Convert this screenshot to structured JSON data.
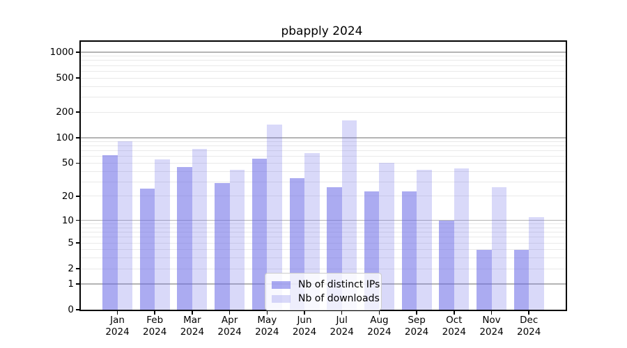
{
  "chart_data": {
    "type": "bar",
    "title": "pbapply 2024",
    "categories": [
      "Jan",
      "Feb",
      "Mar",
      "Apr",
      "May",
      "Jun",
      "Jul",
      "Aug",
      "Sep",
      "Oct",
      "Nov",
      "Dec"
    ],
    "year": "2024",
    "series": [
      {
        "name": "Nb of distinct IPs",
        "color": "#a9a9f3",
        "css_color": "rgba(102,102,230,0.55)",
        "values": [
          62,
          25,
          45,
          29,
          57,
          33,
          26,
          23,
          23,
          10,
          4,
          4
        ]
      },
      {
        "name": "Nb of downloads",
        "color": "#d9d9f8",
        "css_color": "rgba(102,102,230,0.25)",
        "values": [
          90,
          55,
          74,
          42,
          143,
          66,
          160,
          50,
          42,
          43,
          26,
          11
        ]
      }
    ],
    "y_axis": {
      "scale": "log10(v+1)",
      "tick_values": [
        0,
        1,
        2,
        5,
        10,
        20,
        50,
        100,
        200,
        500,
        1000
      ],
      "major_grid_values": [
        1,
        10,
        100,
        1000
      ],
      "ylim": [
        0,
        1320
      ]
    },
    "x_axis": {
      "tick_label_lines": 2
    },
    "legend": {
      "position": "lower-center"
    },
    "grid": true,
    "colors": {
      "major_grid": "#b4b4b4",
      "minor_grid": "#e9e9e9",
      "spine": "#000000",
      "background": "#ffffff"
    }
  }
}
